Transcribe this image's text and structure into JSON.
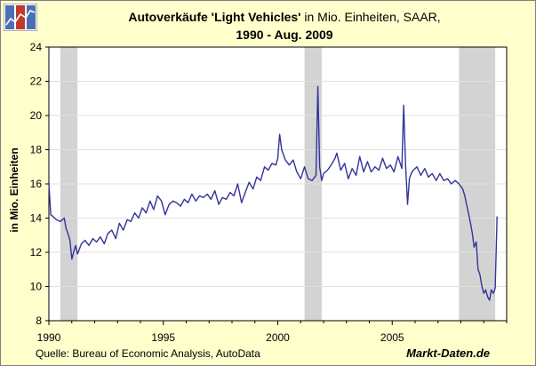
{
  "header": {
    "title_bold": "Autoverkäufe 'Light Vehicles'",
    "title_rest": " in Mio. Einheiten, SAAR,",
    "subtitle": "1990 - Aug. 2009"
  },
  "footer": {
    "source": "Quelle: Bureau of Economic Analysis, AutoData",
    "brand": "Markt-Daten.de"
  },
  "logo": {
    "icon": "market-chart-logo-icon"
  },
  "colors": {
    "series": "#333399",
    "plot_background": "#ffffff",
    "frame_background": "#ffffcc",
    "recession_shading": "#d3d3d3",
    "gridline": "#e0e0e0"
  },
  "chart_data": {
    "type": "line",
    "title": "Autoverkäufe 'Light Vehicles' in Mio. Einheiten, SAAR, 1990 - Aug. 2009",
    "xlabel": "",
    "ylabel": "in Mio. Einheiten",
    "xlim": [
      1990,
      2010
    ],
    "ylim": [
      8,
      24
    ],
    "x_ticks": [
      1990,
      1995,
      2000,
      2005
    ],
    "y_ticks": [
      8,
      10,
      12,
      14,
      16,
      18,
      20,
      22,
      24
    ],
    "grid": "horizontal",
    "legend": "none",
    "recession_periods": [
      [
        1990.5,
        1991.25
      ],
      [
        2001.17,
        2001.92
      ],
      [
        2007.92,
        2009.5
      ]
    ],
    "series": [
      {
        "x": [
          1990.0,
          1990.08,
          1990.17,
          1990.33,
          1990.5,
          1990.67,
          1990.75,
          1990.83,
          1990.92,
          1991.0,
          1991.08,
          1991.17,
          1991.25,
          1991.42,
          1991.58,
          1991.75,
          1991.92,
          1992.08,
          1992.25,
          1992.42,
          1992.58,
          1992.75,
          1992.92,
          1993.08,
          1993.25,
          1993.42,
          1993.58,
          1993.75,
          1993.92,
          1994.08,
          1994.25,
          1994.42,
          1994.58,
          1994.75,
          1994.92,
          1995.08,
          1995.25,
          1995.42,
          1995.58,
          1995.75,
          1995.92,
          1996.08,
          1996.25,
          1996.42,
          1996.58,
          1996.75,
          1996.92,
          1997.08,
          1997.25,
          1997.42,
          1997.58,
          1997.75,
          1997.92,
          1998.08,
          1998.25,
          1998.42,
          1998.58,
          1998.75,
          1998.92,
          1999.08,
          1999.25,
          1999.42,
          1999.58,
          1999.75,
          1999.92,
          2000.0,
          2000.08,
          2000.17,
          2000.33,
          2000.5,
          2000.67,
          2000.83,
          2001.0,
          2001.17,
          2001.33,
          2001.5,
          2001.67,
          2001.75,
          2001.83,
          2001.92,
          2002.0,
          2002.17,
          2002.33,
          2002.5,
          2002.58,
          2002.75,
          2002.92,
          2003.08,
          2003.25,
          2003.42,
          2003.58,
          2003.75,
          2003.92,
          2004.08,
          2004.25,
          2004.42,
          2004.58,
          2004.75,
          2004.92,
          2005.08,
          2005.25,
          2005.42,
          2005.5,
          2005.58,
          2005.67,
          2005.75,
          2005.83,
          2005.92,
          2006.08,
          2006.25,
          2006.42,
          2006.58,
          2006.75,
          2006.92,
          2007.08,
          2007.25,
          2007.42,
          2007.58,
          2007.75,
          2007.92,
          2008.08,
          2008.17,
          2008.25,
          2008.33,
          2008.42,
          2008.5,
          2008.58,
          2008.67,
          2008.75,
          2008.83,
          2008.92,
          2009.0,
          2009.08,
          2009.17,
          2009.25,
          2009.33,
          2009.42,
          2009.5,
          2009.58
        ],
        "values": [
          16.0,
          14.2,
          14.1,
          13.9,
          13.8,
          14.0,
          13.4,
          13.1,
          12.7,
          11.6,
          12.0,
          12.4,
          11.9,
          12.5,
          12.7,
          12.4,
          12.8,
          12.6,
          12.9,
          12.5,
          13.1,
          13.3,
          12.8,
          13.7,
          13.3,
          13.9,
          13.8,
          14.3,
          14.0,
          14.6,
          14.3,
          15.0,
          14.5,
          15.3,
          15.0,
          14.2,
          14.8,
          15.0,
          14.9,
          14.7,
          15.1,
          14.9,
          15.4,
          15.0,
          15.3,
          15.2,
          15.4,
          15.1,
          15.6,
          14.8,
          15.2,
          15.1,
          15.5,
          15.3,
          16.0,
          14.9,
          15.5,
          16.1,
          15.7,
          16.4,
          16.2,
          17.0,
          16.8,
          17.2,
          17.1,
          17.5,
          18.9,
          18.0,
          17.4,
          17.1,
          17.4,
          16.7,
          16.3,
          17.0,
          16.3,
          16.2,
          16.5,
          21.7,
          17.0,
          16.2,
          16.6,
          16.8,
          17.1,
          17.5,
          17.8,
          16.8,
          17.2,
          16.3,
          16.9,
          16.5,
          17.6,
          16.7,
          17.3,
          16.7,
          17.0,
          16.8,
          17.5,
          16.9,
          17.1,
          16.7,
          17.6,
          16.9,
          20.6,
          17.2,
          14.8,
          16.3,
          16.6,
          16.8,
          17.0,
          16.5,
          16.9,
          16.4,
          16.6,
          16.2,
          16.6,
          16.2,
          16.3,
          16.0,
          16.2,
          16.0,
          15.7,
          15.3,
          14.8,
          14.3,
          13.7,
          13.1,
          12.3,
          12.6,
          11.0,
          10.7,
          10.0,
          9.6,
          9.8,
          9.4,
          9.2,
          9.8,
          9.6,
          9.9,
          14.1
        ]
      }
    ]
  }
}
